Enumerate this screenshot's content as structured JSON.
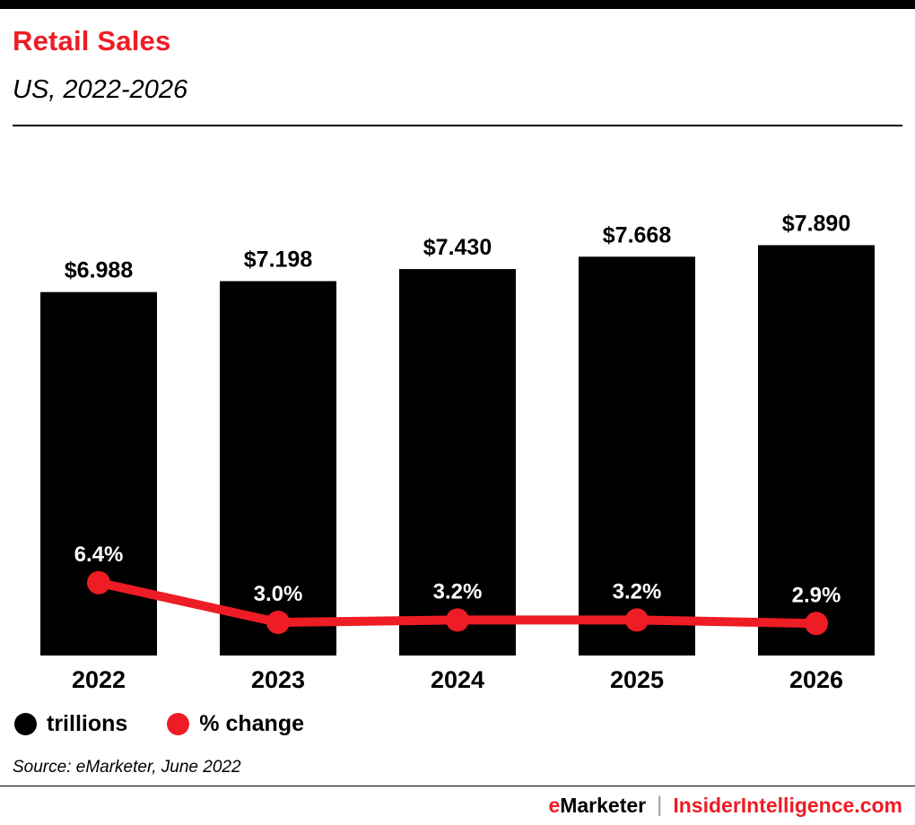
{
  "header": {
    "title": "Retail Sales",
    "subtitle": "US, 2022-2026"
  },
  "chart_data": {
    "type": "bar",
    "title": "Retail Sales",
    "subtitle": "US, 2022-2026",
    "categories": [
      "2022",
      "2023",
      "2024",
      "2025",
      "2026"
    ],
    "series": [
      {
        "name": "trillions",
        "type": "bar",
        "color": "#000000",
        "values": [
          6.988,
          7.198,
          7.43,
          7.668,
          7.89
        ],
        "labels": [
          "$6.988",
          "$7.198",
          "$7.430",
          "$7.668",
          "$7.890"
        ]
      },
      {
        "name": "% change",
        "type": "line",
        "color": "#ee1c24",
        "values": [
          6.4,
          3.0,
          3.2,
          3.2,
          2.9
        ],
        "labels": [
          "6.4%",
          "3.0%",
          "3.2%",
          "3.2%",
          "2.9%"
        ]
      }
    ],
    "xlabel": "",
    "ylabel": "",
    "ylim": [
      0,
      9
    ],
    "grid": false,
    "legend_position": "bottom"
  },
  "legend": {
    "items": [
      {
        "label": "trillions",
        "color": "#000000"
      },
      {
        "label": "% change",
        "color": "#ee1c24"
      }
    ]
  },
  "source": {
    "text": "Source: eMarketer, June 2022"
  },
  "footer": {
    "brand_e": "e",
    "brand_rest": "Marketer",
    "separator": "|",
    "site": "InsiderIntelligence.com"
  },
  "colors": {
    "accent_red": "#ee1c24",
    "bar_black": "#000000",
    "top_bar": "#000000"
  }
}
